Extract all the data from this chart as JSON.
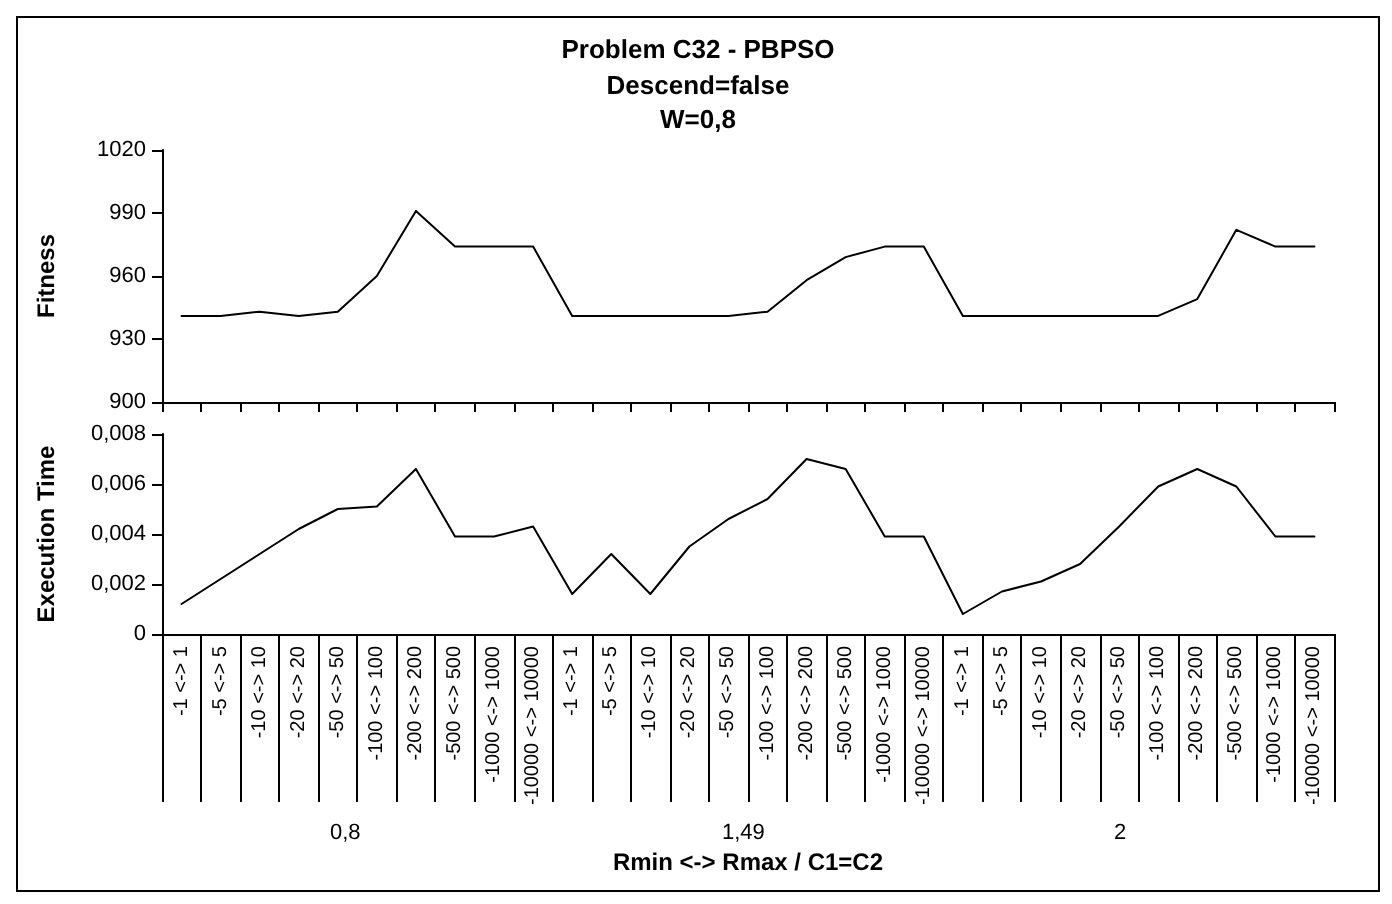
{
  "chart_data": [
    {
      "type": "line",
      "title": "Problem C32 - PBPSO",
      "subtitle": "Descend=false\nW=0,8",
      "ylabel": "Fitness",
      "categories": [
        null,
        null,
        null,
        null,
        null,
        null,
        null,
        null,
        null,
        null,
        null,
        null,
        null,
        null,
        null,
        null,
        null,
        null,
        null,
        null,
        null,
        null,
        null,
        null,
        null,
        null,
        null,
        null,
        null,
        null
      ],
      "series": [
        {
          "color": "#000000",
          "values": [
            941,
            941,
            943,
            941,
            943,
            960,
            991,
            974,
            974,
            974,
            941,
            941,
            941,
            941,
            941,
            943,
            958,
            969,
            974,
            974,
            941,
            941,
            941,
            941,
            941,
            941,
            949,
            982,
            974,
            974
          ]
        }
      ],
      "ylim": [
        900,
        1020
      ],
      "yticks": [
        900,
        930,
        960,
        990,
        1020
      ],
      "tick_labels": "y",
      "grid": false,
      "marker": "none",
      "line_style": "solid"
    },
    {
      "type": "line",
      "ylabel": "Execution Time",
      "xlabel": "Rmin <-> Rmax / C1=C2",
      "categories": [
        "-1 <-> 1",
        "-5 <-> 5",
        "-10 <-> 10",
        "-20 <-> 20",
        "-50 <-> 50",
        "-100 <-> 100",
        "-200 <-> 200",
        "-500 <-> 500",
        "-1000 <-> 1000",
        "-10000 <-> 10000",
        "-1 <-> 1",
        "-5 <-> 5",
        "-10 <-> 10",
        "-20 <-> 20",
        "-50 <-> 50",
        "-100 <-> 100",
        "-200 <-> 200",
        "-500 <-> 500",
        "-1000 <-> 1000",
        "-10000 <-> 10000",
        "-1 <-> 1",
        "-5 <-> 5",
        "-10 <-> 10",
        "-20 <-> 20",
        "-50 <-> 50",
        "-100 <-> 100",
        "-200 <-> 200",
        "-500 <-> 500",
        "-1000 <-> 1000",
        "-10000 <-> 10000"
      ],
      "series": [
        {
          "color": "#000000",
          "values": [
            0.0012,
            0.0022,
            0.0032,
            0.0042,
            0.005,
            0.0051,
            0.0066,
            0.0039,
            0.0039,
            0.0043,
            0.0016,
            0.0032,
            0.0016,
            0.0035,
            0.0046,
            0.0054,
            0.007,
            0.0066,
            0.0039,
            0.0039,
            0.0008,
            0.0017,
            0.0021,
            0.0028,
            0.0043,
            0.0059,
            0.0066,
            0.0059,
            0.0039,
            0.0039
          ]
        }
      ],
      "ylim": [
        0,
        0.008
      ],
      "yticks": [
        0,
        {
          "value": 0.002,
          "label": "0,002"
        },
        {
          "value": 0.004,
          "label": "0,004"
        },
        {
          "value": 0.006,
          "label": "0,006"
        },
        {
          "value": 0.008,
          "label": "0,008"
        }
      ],
      "annotations": [
        "0,8",
        "1,49",
        "2"
      ],
      "grid": false,
      "marker": "none",
      "line_style": "solid"
    }
  ]
}
